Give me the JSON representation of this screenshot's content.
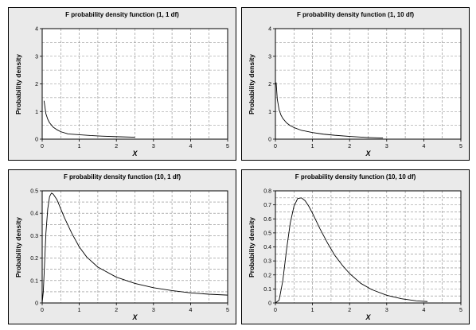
{
  "chart_data": [
    {
      "type": "line",
      "title": "F probability density function (1, 1 df)",
      "xlabel": "X",
      "ylabel": "Probability density",
      "xlim": [
        0,
        5
      ],
      "ylim": [
        0,
        4
      ],
      "xticks": [
        "0",
        "1",
        "2",
        "3",
        "4",
        "5"
      ],
      "yticks": [
        "0",
        "1",
        "2",
        "3",
        "4"
      ],
      "grid": true,
      "series": [
        {
          "x": [
            0.05,
            0.1,
            0.15,
            0.2,
            0.3,
            0.4,
            0.5,
            0.7,
            1.0,
            1.3,
            1.6,
            2.0,
            2.5
          ],
          "y": [
            1.39,
            0.92,
            0.72,
            0.59,
            0.43,
            0.34,
            0.27,
            0.19,
            0.16,
            0.13,
            0.11,
            0.09,
            0.07
          ]
        }
      ]
    },
    {
      "type": "line",
      "title": "F probability density function (1, 10 df)",
      "xlabel": "X",
      "ylabel": "Probability density",
      "xlim": [
        0,
        5
      ],
      "ylim": [
        0,
        4
      ],
      "xticks": [
        "0",
        "1",
        "2",
        "3",
        "4",
        "5"
      ],
      "yticks": [
        "0",
        "1",
        "2",
        "3",
        "4"
      ],
      "grid": true,
      "series": [
        {
          "x": [
            0.02,
            0.05,
            0.1,
            0.15,
            0.2,
            0.3,
            0.4,
            0.5,
            0.7,
            1.0,
            1.3,
            1.6,
            2.0,
            2.5,
            2.9
          ],
          "y": [
            2.05,
            1.45,
            1.06,
            0.87,
            0.75,
            0.59,
            0.49,
            0.42,
            0.32,
            0.24,
            0.18,
            0.14,
            0.1,
            0.06,
            0.04
          ]
        }
      ]
    },
    {
      "type": "line",
      "title": "F probability density function (10, 1 df)",
      "xlabel": "X",
      "ylabel": "Probability density",
      "xlim": [
        0,
        5
      ],
      "ylim": [
        0,
        0.5
      ],
      "xticks": [
        "0",
        "1",
        "2",
        "3",
        "4",
        "5"
      ],
      "yticks": [
        "0",
        "0.1",
        "0.2",
        "0.3",
        "0.4",
        "0.5"
      ],
      "grid": true,
      "series": [
        {
          "x": [
            0.0,
            0.03,
            0.06,
            0.1,
            0.15,
            0.2,
            0.25,
            0.3,
            0.4,
            0.5,
            0.6,
            0.8,
            1.0,
            1.2,
            1.5,
            2.0,
            2.5,
            3.0,
            3.5,
            4.0,
            4.5,
            5.0
          ],
          "y": [
            0.0,
            0.05,
            0.16,
            0.31,
            0.42,
            0.475,
            0.49,
            0.485,
            0.46,
            0.42,
            0.38,
            0.31,
            0.25,
            0.205,
            0.16,
            0.115,
            0.087,
            0.068,
            0.055,
            0.045,
            0.039,
            0.035
          ]
        }
      ]
    },
    {
      "type": "line",
      "title": "F probability density function (10, 10 df)",
      "xlabel": "X",
      "ylabel": "Probability density",
      "xlim": [
        0,
        5
      ],
      "ylim": [
        0,
        0.8
      ],
      "xticks": [
        "0",
        "1",
        "2",
        "3",
        "4",
        "5"
      ],
      "yticks": [
        "0",
        "0.1",
        "0.2",
        "0.3",
        "0.4",
        "0.5",
        "0.6",
        "0.7",
        "0.8"
      ],
      "grid": true,
      "series": [
        {
          "x": [
            0.0,
            0.1,
            0.2,
            0.3,
            0.4,
            0.5,
            0.6,
            0.7,
            0.8,
            0.9,
            1.0,
            1.2,
            1.4,
            1.6,
            1.8,
            2.0,
            2.3,
            2.6,
            3.0,
            3.4,
            3.8,
            4.1
          ],
          "y": [
            0.0,
            0.02,
            0.16,
            0.38,
            0.57,
            0.69,
            0.745,
            0.75,
            0.73,
            0.69,
            0.64,
            0.53,
            0.43,
            0.34,
            0.27,
            0.21,
            0.14,
            0.095,
            0.055,
            0.03,
            0.015,
            0.01
          ]
        }
      ]
    }
  ]
}
